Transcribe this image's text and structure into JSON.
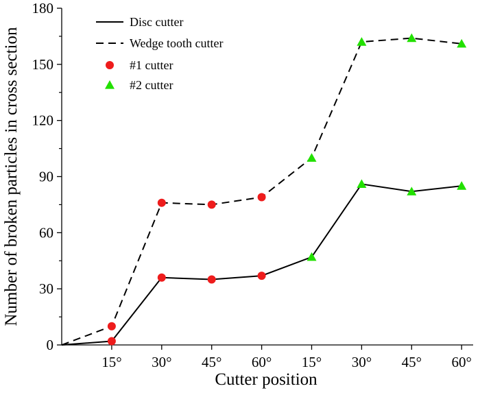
{
  "chart_data": {
    "type": "line",
    "xlabel": "Cutter position",
    "ylabel": "Number of broken particles in cross section",
    "categories": [
      "",
      "15°",
      "30°",
      "45°",
      "60°",
      "15°",
      "30°",
      "45°",
      "60°"
    ],
    "ylim": [
      0,
      180
    ],
    "yticks": [
      0,
      30,
      60,
      90,
      120,
      150,
      180
    ],
    "grid": false,
    "legend_position": "top-left",
    "series": [
      {
        "name": "Disc cutter",
        "line_style": "solid",
        "values": [
          0,
          2,
          36,
          35,
          37,
          47,
          86,
          82,
          85
        ]
      },
      {
        "name": "Wedge tooth cutter",
        "line_style": "dashed",
        "values": [
          0,
          10,
          76,
          75,
          79,
          100,
          162,
          164,
          161
        ]
      }
    ],
    "marker_groups": [
      {
        "name": "#1 cutter",
        "marker": "circle",
        "color": "#ee1c1c",
        "category_indices": [
          1,
          2,
          3,
          4
        ]
      },
      {
        "name": "#2 cutter",
        "marker": "triangle",
        "color": "#22e000",
        "category_indices": [
          5,
          6,
          7,
          8
        ]
      }
    ],
    "colors": {
      "line": "#000000",
      "circle": "#ee1c1c",
      "triangle": "#22e000"
    }
  }
}
